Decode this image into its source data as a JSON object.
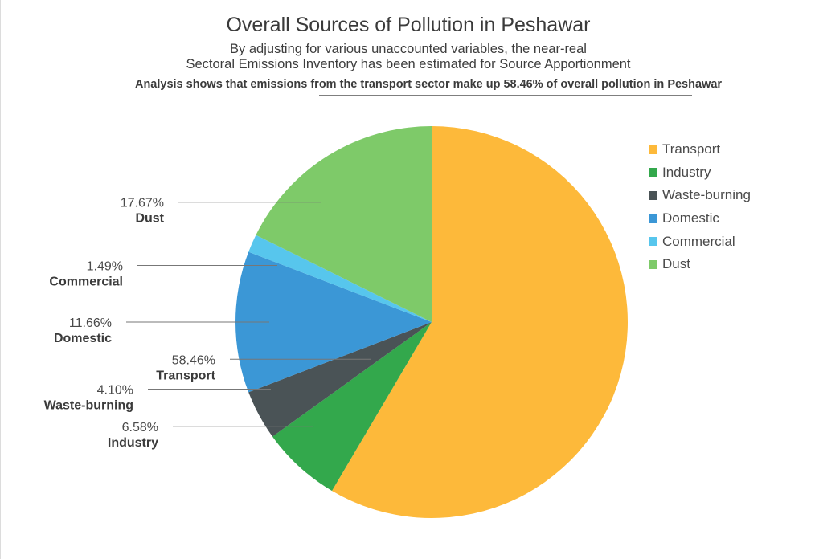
{
  "title": "Overall Sources of Pollution in Peshawar",
  "subtitle_line1": "By adjusting for various unaccounted variables, the near-real",
  "subtitle_line2": "Sectoral Emissions Inventory has been estimated for Source Apportionment",
  "analysis_prefix": "Analysis shows that emissions from ",
  "analysis_highlight": "the transport sector make up 58.46% of overall pollution",
  "analysis_suffix": " in Peshawar",
  "chart_data": {
    "type": "pie",
    "title": "Overall Sources of Pollution in Peshawar",
    "start": "12 o'clock",
    "direction": "clockwise",
    "legend_position": "right",
    "slices": [
      {
        "name": "Transport",
        "value": 58.46,
        "label": "58.46%",
        "color": "#fdb93a"
      },
      {
        "name": "Industry",
        "value": 6.58,
        "label": "6.58%",
        "color": "#33a84c"
      },
      {
        "name": "Waste-burning",
        "value": 4.1,
        "label": "4.10%",
        "color": "#4a5356"
      },
      {
        "name": "Domestic",
        "value": 11.66,
        "label": "11.66%",
        "color": "#3b97d6"
      },
      {
        "name": "Commercial",
        "value": 1.49,
        "label": "1.49%",
        "color": "#57c6ed"
      },
      {
        "name": "Dust",
        "value": 17.67,
        "label": "17.67%",
        "color": "#7eca69"
      }
    ]
  }
}
